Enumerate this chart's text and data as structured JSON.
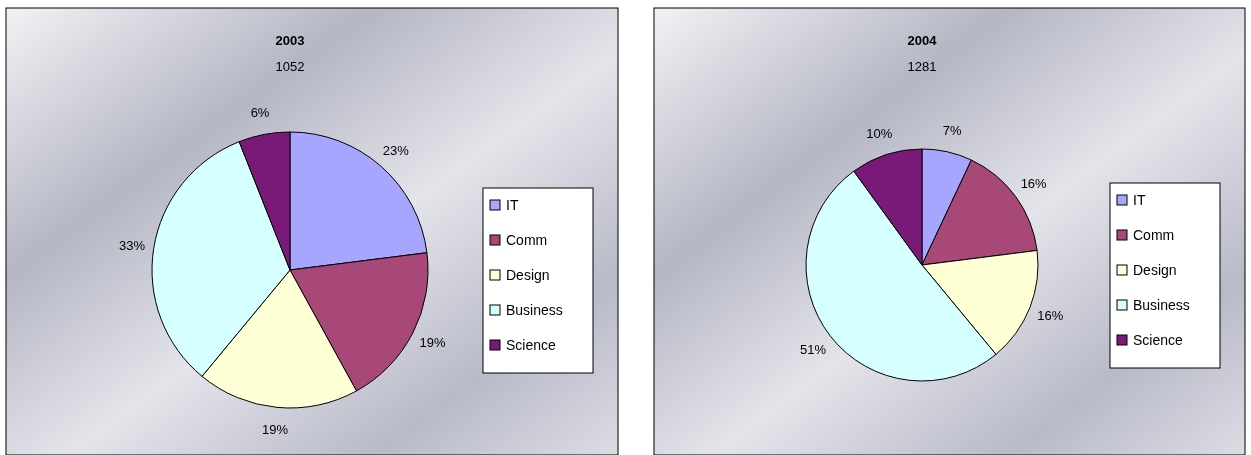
{
  "chart_data": [
    {
      "type": "pie",
      "title": "2003",
      "subtitle": "1052",
      "categories": [
        "IT",
        "Comm",
        "Design",
        "Business",
        "Science"
      ],
      "values": [
        23,
        19,
        19,
        33,
        6
      ],
      "value_labels": [
        "23%",
        "19%",
        "19%",
        "33%",
        "6%"
      ],
      "colors": [
        "#a6a6ff",
        "#a84878",
        "#ffffd6",
        "#d6ffff",
        "#7a1a78"
      ],
      "legend": "right"
    },
    {
      "type": "pie",
      "title": "2004",
      "subtitle": "1281",
      "categories": [
        "IT",
        "Comm",
        "Design",
        "Business",
        "Science"
      ],
      "values": [
        7,
        16,
        16,
        51,
        10
      ],
      "value_labels": [
        "7%",
        "16%",
        "16%",
        "51%",
        "10%"
      ],
      "colors": [
        "#a6a6ff",
        "#a84878",
        "#ffffd6",
        "#d6ffff",
        "#7a1a78"
      ],
      "legend": "right"
    }
  ]
}
